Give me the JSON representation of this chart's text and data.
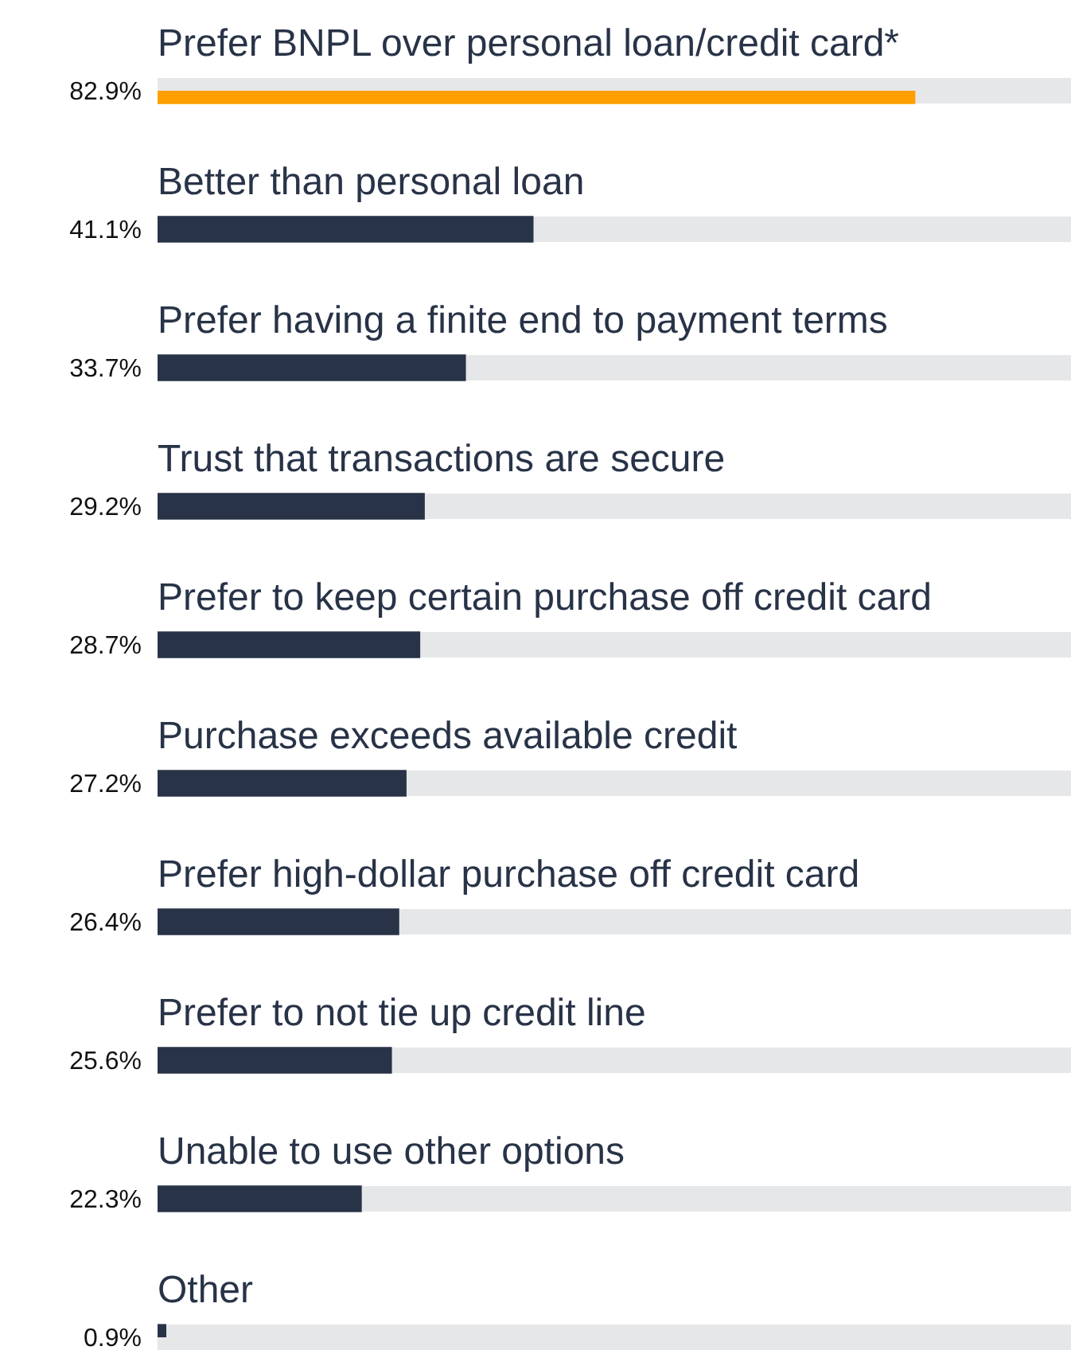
{
  "chart_data": {
    "type": "bar",
    "orientation": "horizontal",
    "categories": [
      "Prefer BNPL over personal loan/credit card*",
      "Better than personal loan",
      "Prefer having a finite end to payment terms",
      "Trust that transactions are secure",
      "Prefer to keep certain purchase off credit card",
      "Purchase exceeds available credit",
      "Prefer high-dollar purchase off credit card",
      "Prefer to not tie up credit line",
      "Unable to use other options",
      "Other"
    ],
    "values": [
      82.9,
      41.1,
      33.7,
      29.2,
      28.7,
      27.2,
      26.4,
      25.6,
      22.3,
      0.9
    ],
    "value_labels": [
      "82.9%",
      "41.1%",
      "33.7%",
      "29.2%",
      "28.7%",
      "27.2%",
      "26.4%",
      "25.6%",
      "22.3%",
      "0.9%"
    ],
    "colors": [
      "#ff9f00",
      "#283347",
      "#283347",
      "#283347",
      "#283347",
      "#283347",
      "#283347",
      "#283347",
      "#283347",
      "#283347"
    ],
    "xlim": [
      0,
      100
    ],
    "legend": false
  }
}
